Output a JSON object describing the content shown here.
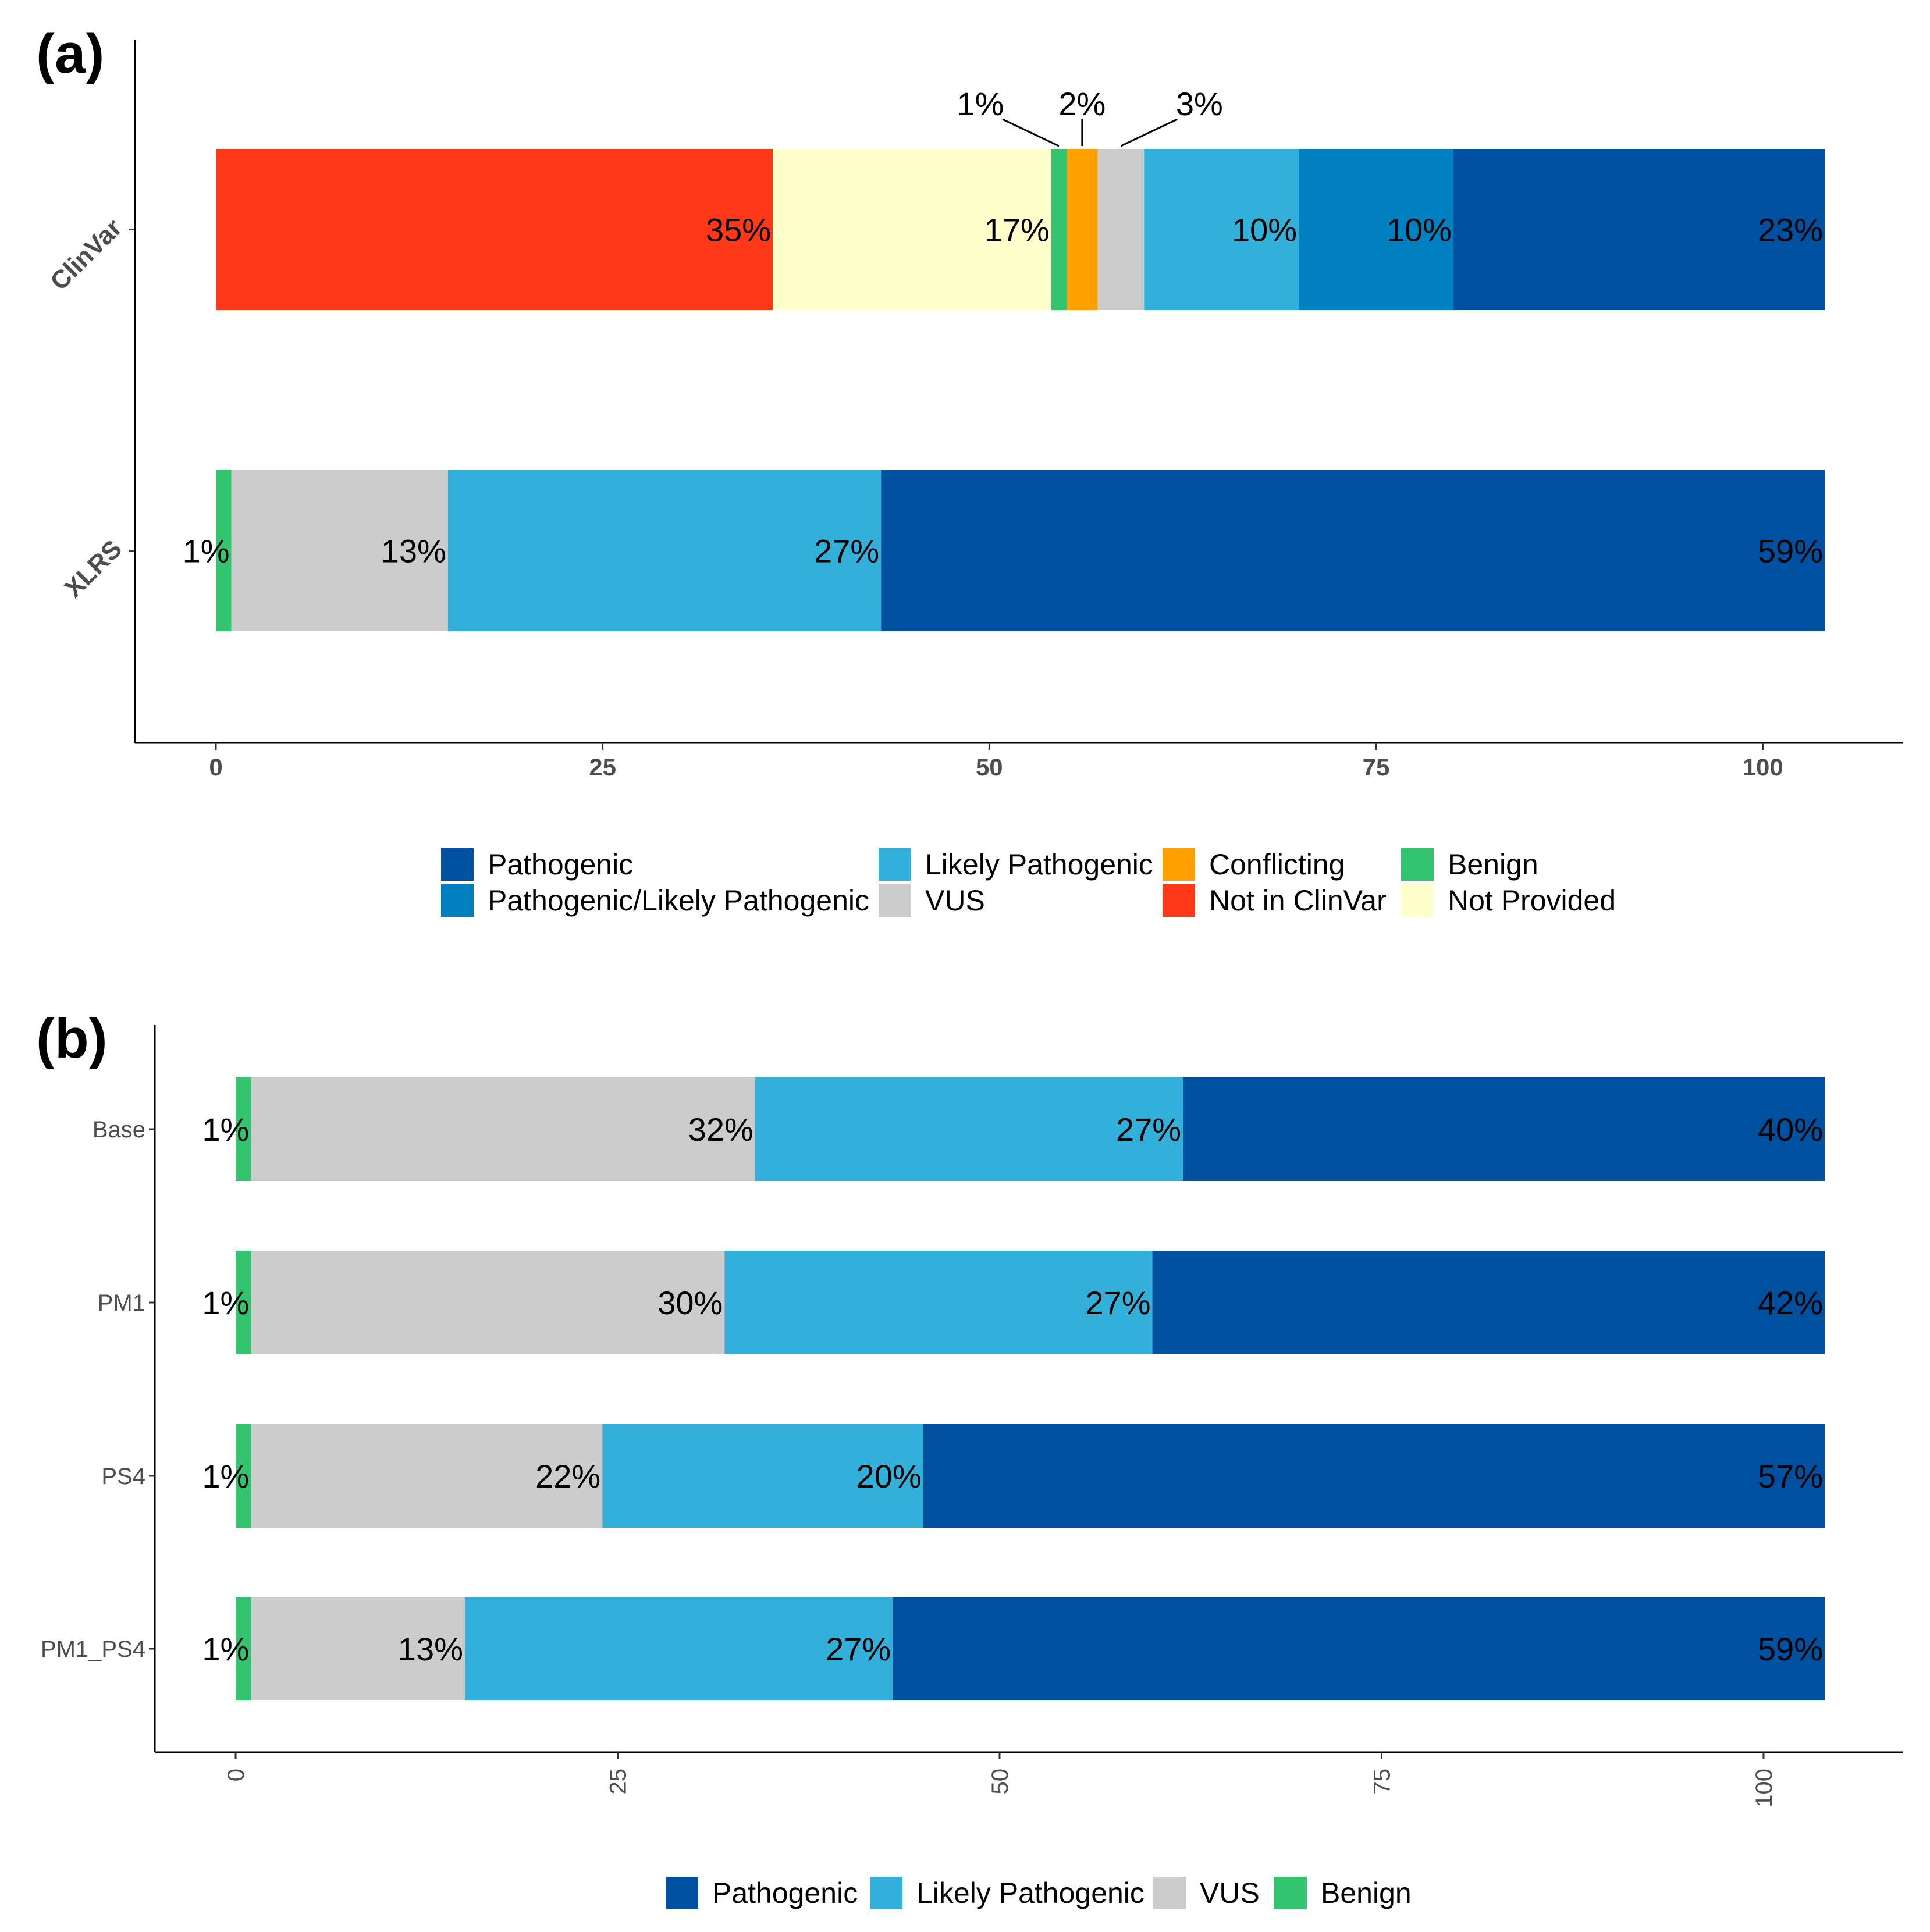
{
  "chart_data": [
    {
      "panel": "(a)",
      "type": "bar",
      "orientation": "horizontal",
      "stacked": true,
      "categories": [
        "ClinVar",
        "XLRS"
      ],
      "xlim": [
        0,
        104
      ],
      "xticks": [
        0,
        25,
        50,
        75,
        100
      ],
      "grid": false,
      "bars": [
        {
          "category": "ClinVar",
          "segments": [
            {
              "key": "notinclinvar",
              "start": 0,
              "end": 36,
              "label": "35%",
              "callout": false
            },
            {
              "key": "notprovided",
              "start": 36,
              "end": 54,
              "label": "17%",
              "callout": false
            },
            {
              "key": "benign",
              "start": 54,
              "end": 55,
              "label": "1%",
              "callout": true
            },
            {
              "key": "conflicting",
              "start": 55,
              "end": 57,
              "label": "2%",
              "callout": true
            },
            {
              "key": "vus",
              "start": 57,
              "end": 60,
              "label": "3%",
              "callout": true
            },
            {
              "key": "lp",
              "start": 60,
              "end": 70,
              "label": "10%",
              "callout": false
            },
            {
              "key": "plp",
              "start": 70,
              "end": 80,
              "label": "10%",
              "callout": false
            },
            {
              "key": "pathogenic",
              "start": 80,
              "end": 104,
              "label": "23%",
              "callout": false
            }
          ]
        },
        {
          "category": "XLRS",
          "segments": [
            {
              "key": "benign",
              "start": 0,
              "end": 1,
              "label": "1%",
              "callout": false
            },
            {
              "key": "vus",
              "start": 1,
              "end": 15,
              "label": "13%",
              "callout": false
            },
            {
              "key": "lp",
              "start": 15,
              "end": 43,
              "label": "27%",
              "callout": false
            },
            {
              "key": "pathogenic",
              "start": 43,
              "end": 104,
              "label": "59%",
              "callout": false
            }
          ]
        }
      ],
      "legend": {
        "placement": "bottom",
        "items": [
          {
            "key": "pathogenic",
            "label": "Pathogenic"
          },
          {
            "key": "plp",
            "label": "Pathogenic/Likely Pathogenic"
          },
          {
            "key": "lp",
            "label": "Likely Pathogenic"
          },
          {
            "key": "vus",
            "label": "VUS"
          },
          {
            "key": "conflicting",
            "label": "Conflicting"
          },
          {
            "key": "notinclinvar",
            "label": "Not in ClinVar"
          },
          {
            "key": "benign",
            "label": "Benign"
          },
          {
            "key": "notprovided",
            "label": "Not Provided"
          }
        ]
      }
    },
    {
      "panel": "(b)",
      "type": "bar",
      "orientation": "horizontal",
      "stacked": true,
      "categories": [
        "Base",
        "PM1",
        "PS4",
        "PM1_PS4"
      ],
      "xlim": [
        0,
        104
      ],
      "xticks": [
        0,
        25,
        50,
        75,
        100
      ],
      "xtick_rotation": -90,
      "grid": false,
      "bars": [
        {
          "category": "Base",
          "segments": [
            {
              "key": "benign",
              "start": 0,
              "end": 1,
              "label": "1%"
            },
            {
              "key": "vus",
              "start": 1,
              "end": 34,
              "label": "32%"
            },
            {
              "key": "lp",
              "start": 34,
              "end": 62,
              "label": "27%"
            },
            {
              "key": "pathogenic",
              "start": 62,
              "end": 104,
              "label": "40%"
            }
          ]
        },
        {
          "category": "PM1",
          "segments": [
            {
              "key": "benign",
              "start": 0,
              "end": 1,
              "label": "1%"
            },
            {
              "key": "vus",
              "start": 1,
              "end": 32,
              "label": "30%"
            },
            {
              "key": "lp",
              "start": 32,
              "end": 60,
              "label": "27%"
            },
            {
              "key": "pathogenic",
              "start": 60,
              "end": 104,
              "label": "42%"
            }
          ]
        },
        {
          "category": "PS4",
          "segments": [
            {
              "key": "benign",
              "start": 0,
              "end": 1,
              "label": "1%"
            },
            {
              "key": "vus",
              "start": 1,
              "end": 24,
              "label": "22%"
            },
            {
              "key": "lp",
              "start": 24,
              "end": 45,
              "label": "20%"
            },
            {
              "key": "pathogenic",
              "start": 45,
              "end": 104,
              "label": "57%"
            }
          ]
        },
        {
          "category": "PM1_PS4",
          "segments": [
            {
              "key": "benign",
              "start": 0,
              "end": 1,
              "label": "1%"
            },
            {
              "key": "vus",
              "start": 1,
              "end": 15,
              "label": "13%"
            },
            {
              "key": "lp",
              "start": 15,
              "end": 43,
              "label": "27%"
            },
            {
              "key": "pathogenic",
              "start": 43,
              "end": 104,
              "label": "59%"
            }
          ]
        }
      ],
      "legend": {
        "placement": "bottom",
        "items": [
          {
            "key": "pathogenic",
            "label": "Pathogenic"
          },
          {
            "key": "lp",
            "label": "Likely Pathogenic"
          },
          {
            "key": "vus",
            "label": "VUS"
          },
          {
            "key": "benign",
            "label": "Benign"
          }
        ]
      }
    }
  ],
  "colors": {
    "pathogenic": "#0050A0",
    "plp": "#0080C0",
    "lp": "#33B0D9",
    "vus": "#CCCCCC",
    "conflicting": "#FFA000",
    "notinclinvar": "#FF3818",
    "benign": "#33C470",
    "notprovided": "#FFFFCC"
  }
}
